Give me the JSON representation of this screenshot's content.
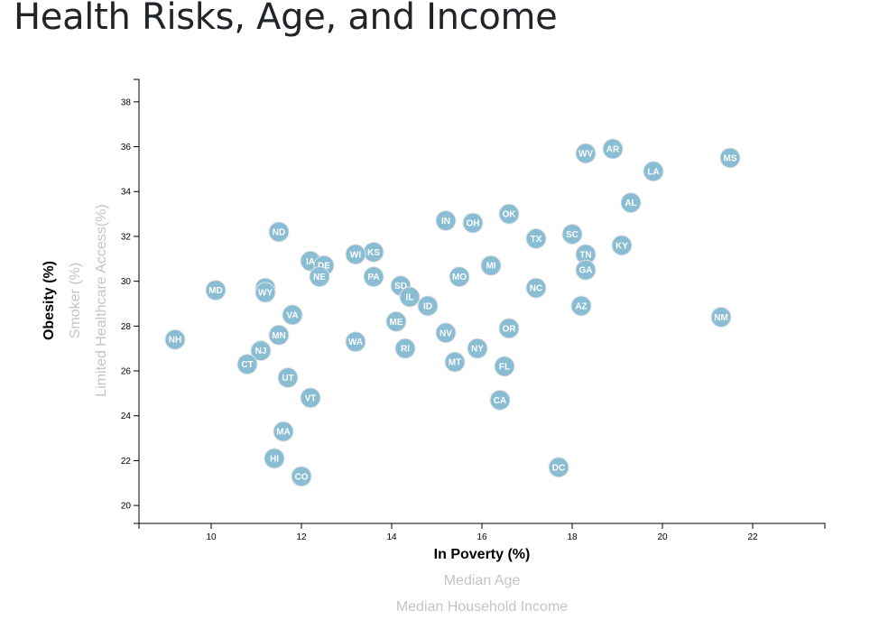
{
  "page": {
    "title": "Health Risks, Age, and Income"
  },
  "colors": {
    "circle": "#89bdd3",
    "active_label": "#000000",
    "inactive_label": "#c4c4c4"
  },
  "chart_data": {
    "type": "scatter",
    "title": "",
    "xlim": [
      8.4,
      23.6
    ],
    "ylim": [
      19.2,
      39.0
    ],
    "x_ticks": [
      10,
      12,
      14,
      16,
      18,
      20,
      22
    ],
    "y_ticks": [
      20,
      22,
      24,
      26,
      28,
      30,
      32,
      34,
      36,
      38
    ],
    "x_labels": [
      {
        "text": "In Poverty (%)",
        "active": true
      },
      {
        "text": "Median Age",
        "active": false
      },
      {
        "text": "Median Household Income",
        "active": false
      }
    ],
    "y_labels": [
      {
        "text": "Obesity (%)",
        "active": true
      },
      {
        "text": "Smoker (%)",
        "active": false
      },
      {
        "text": "Limited Healthcare Access(%)",
        "active": false
      }
    ],
    "points": [
      {
        "label": "MS",
        "x": 21.5,
        "y": 35.5
      },
      {
        "label": "AR",
        "x": 18.9,
        "y": 35.9
      },
      {
        "label": "WV",
        "x": 18.3,
        "y": 35.7
      },
      {
        "label": "LA",
        "x": 19.8,
        "y": 34.9
      },
      {
        "label": "AL",
        "x": 19.3,
        "y": 33.5
      },
      {
        "label": "OK",
        "x": 16.6,
        "y": 33.0
      },
      {
        "label": "IN",
        "x": 15.2,
        "y": 32.7
      },
      {
        "label": "OH",
        "x": 15.8,
        "y": 32.6
      },
      {
        "label": "ND",
        "x": 11.5,
        "y": 32.2
      },
      {
        "label": "SC",
        "x": 18.0,
        "y": 32.1
      },
      {
        "label": "TX",
        "x": 17.2,
        "y": 31.9
      },
      {
        "label": "KY",
        "x": 19.1,
        "y": 31.6
      },
      {
        "label": "KS",
        "x": 13.6,
        "y": 31.3
      },
      {
        "label": "WI",
        "x": 13.2,
        "y": 31.2
      },
      {
        "label": "TN",
        "x": 18.3,
        "y": 31.2
      },
      {
        "label": "IA",
        "x": 12.2,
        "y": 30.9
      },
      {
        "label": "DE",
        "x": 12.5,
        "y": 30.7
      },
      {
        "label": "MI",
        "x": 16.2,
        "y": 30.7
      },
      {
        "label": "GA",
        "x": 18.3,
        "y": 30.5
      },
      {
        "label": "NE",
        "x": 12.4,
        "y": 30.2
      },
      {
        "label": "PA",
        "x": 13.6,
        "y": 30.2
      },
      {
        "label": "MO",
        "x": 15.5,
        "y": 30.2
      },
      {
        "label": "SD",
        "x": 14.2,
        "y": 29.8
      },
      {
        "label": "AK",
        "x": 11.2,
        "y": 29.7
      },
      {
        "label": "NC",
        "x": 17.2,
        "y": 29.7
      },
      {
        "label": "MD",
        "x": 10.1,
        "y": 29.6
      },
      {
        "label": "WY",
        "x": 11.2,
        "y": 29.5
      },
      {
        "label": "IL",
        "x": 14.4,
        "y": 29.3
      },
      {
        "label": "ID",
        "x": 14.8,
        "y": 28.9
      },
      {
        "label": "AZ",
        "x": 18.2,
        "y": 28.9
      },
      {
        "label": "VA",
        "x": 11.8,
        "y": 28.5
      },
      {
        "label": "NM",
        "x": 21.3,
        "y": 28.4
      },
      {
        "label": "ME",
        "x": 14.1,
        "y": 28.2
      },
      {
        "label": "OR",
        "x": 16.6,
        "y": 27.9
      },
      {
        "label": "NV",
        "x": 15.2,
        "y": 27.7
      },
      {
        "label": "MN",
        "x": 11.5,
        "y": 27.6
      },
      {
        "label": "NH",
        "x": 9.2,
        "y": 27.4
      },
      {
        "label": "WA",
        "x": 13.2,
        "y": 27.3
      },
      {
        "label": "RI",
        "x": 14.3,
        "y": 27.0
      },
      {
        "label": "NY",
        "x": 15.9,
        "y": 27.0
      },
      {
        "label": "NJ",
        "x": 11.1,
        "y": 26.9
      },
      {
        "label": "MT",
        "x": 15.4,
        "y": 26.4
      },
      {
        "label": "CT",
        "x": 10.8,
        "y": 26.3
      },
      {
        "label": "FL",
        "x": 16.5,
        "y": 26.2
      },
      {
        "label": "UT",
        "x": 11.7,
        "y": 25.7
      },
      {
        "label": "VT",
        "x": 12.2,
        "y": 24.8
      },
      {
        "label": "CA",
        "x": 16.4,
        "y": 24.7
      },
      {
        "label": "MA",
        "x": 11.6,
        "y": 23.3
      },
      {
        "label": "HI",
        "x": 11.4,
        "y": 22.1
      },
      {
        "label": "DC",
        "x": 17.7,
        "y": 21.7
      },
      {
        "label": "CO",
        "x": 12.0,
        "y": 21.3
      }
    ]
  }
}
